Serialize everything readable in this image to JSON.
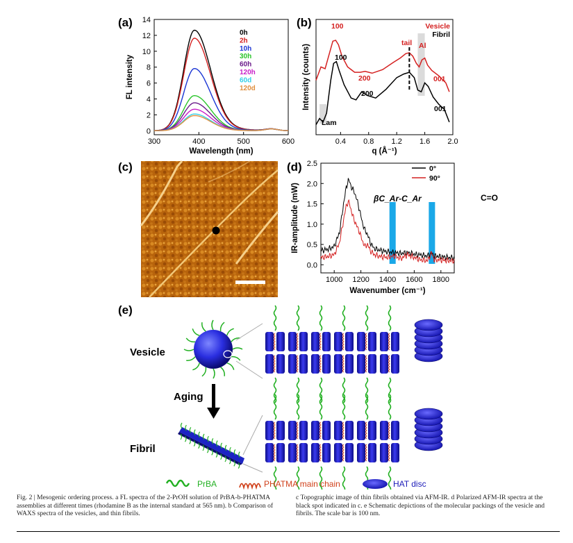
{
  "panels": {
    "a": {
      "label": "(a)"
    },
    "b": {
      "label": "(b)"
    },
    "c": {
      "label": "(c)"
    },
    "d": {
      "label": "(d)"
    },
    "e": {
      "label": "(e)"
    }
  },
  "chart_data": [
    {
      "id": "a",
      "type": "line",
      "title": "",
      "xlabel": "Wavelength (nm)",
      "ylabel": "FL intensity",
      "xlim": [
        300,
        600
      ],
      "ylim": [
        -0.5,
        14
      ],
      "xticks": [
        "300",
        "400",
        "500",
        "600"
      ],
      "yticks": [
        "0",
        "2",
        "4",
        "6",
        "8",
        "10",
        "12",
        "14"
      ],
      "legend_position": "top-right",
      "peak_x": 390,
      "series": [
        {
          "name": "0h",
          "color": "#000000",
          "peak": 12.6
        },
        {
          "name": "2h",
          "color": "#d42020",
          "peak": 11.6
        },
        {
          "name": "10h",
          "color": "#1a35d4",
          "peak": 7.8
        },
        {
          "name": "30h",
          "color": "#2ac42a",
          "peak": 4.4
        },
        {
          "name": "60h",
          "color": "#6a1a8a",
          "peak": 3.5
        },
        {
          "name": "120h",
          "color": "#c81ec8",
          "peak": 2.7
        },
        {
          "name": "60d",
          "color": "#34d0e8",
          "peak": 2.1
        },
        {
          "name": "120d",
          "color": "#e09040",
          "peak": 1.9
        }
      ]
    },
    {
      "id": "b",
      "type": "line",
      "title": "",
      "xlabel": "q (Å⁻¹)",
      "ylabel": "Intensity (counts)",
      "xlim": [
        0.05,
        2.0
      ],
      "xticks": [
        "0.4",
        "0.8",
        "1.2",
        "1.6",
        "2.0"
      ],
      "legend_position": "top-right",
      "series": [
        {
          "name": "Vesicle",
          "color": "#d42020",
          "x": [
            0.05,
            0.12,
            0.18,
            0.24,
            0.29,
            0.33,
            0.37,
            0.42,
            0.5,
            0.6,
            0.68,
            0.75,
            0.85,
            1.0,
            1.15,
            1.25,
            1.33,
            1.38,
            1.43,
            1.48,
            1.52,
            1.56,
            1.6,
            1.64,
            1.7,
            1.8,
            1.9,
            1.95
          ],
          "y": [
            0.55,
            0.7,
            0.68,
            0.85,
            0.99,
            1.0,
            0.95,
            0.82,
            0.7,
            0.64,
            0.64,
            0.65,
            0.63,
            0.67,
            0.75,
            0.8,
            0.85,
            0.86,
            0.82,
            0.74,
            0.7,
            0.78,
            0.8,
            0.72,
            0.66,
            0.6,
            0.52,
            0.42
          ]
        },
        {
          "name": "Fibril",
          "color": "#000000",
          "x": [
            0.05,
            0.1,
            0.15,
            0.2,
            0.26,
            0.3,
            0.34,
            0.38,
            0.45,
            0.55,
            0.62,
            0.7,
            0.78,
            0.9,
            1.05,
            1.2,
            1.3,
            1.38,
            1.45,
            1.5,
            1.55,
            1.6,
            1.65,
            1.72,
            1.8,
            1.88,
            1.95
          ],
          "y": [
            0.05,
            0.12,
            0.08,
            0.18,
            0.55,
            0.74,
            0.76,
            0.66,
            0.5,
            0.35,
            0.33,
            0.42,
            0.38,
            0.35,
            0.45,
            0.58,
            0.62,
            0.64,
            0.58,
            0.44,
            0.42,
            0.52,
            0.48,
            0.36,
            0.28,
            0.22,
            0.08
          ]
        }
      ],
      "annotations": {
        "vesicle": [
          "100",
          "200",
          "tail",
          "Al",
          "001"
        ],
        "fibril": [
          "100",
          "200",
          "001",
          "Lam"
        ]
      }
    },
    {
      "id": "d",
      "type": "line",
      "title": "",
      "xlabel": "Wavenumber (cm⁻¹)",
      "ylabel": "IR-amplitude (mW)",
      "xlim": [
        900,
        1900
      ],
      "ylim": [
        -0.2,
        2.5
      ],
      "xticks": [
        "1000",
        "1200",
        "1400",
        "1600",
        "1800"
      ],
      "yticks": [
        "0.0",
        "0.5",
        "1.0",
        "1.5",
        "2.0",
        "2.5"
      ],
      "legend_position": "top-right",
      "highlight_bands": [
        {
          "label": "βC_Ar-C_Ar",
          "x": 1435
        },
        {
          "label": "C=O",
          "x": 1730
        }
      ],
      "series": [
        {
          "name": "0°",
          "color": "#000000",
          "x": [
            900,
            950,
            1000,
            1040,
            1070,
            1090,
            1105,
            1115,
            1130,
            1150,
            1170,
            1190,
            1210,
            1230,
            1250,
            1270,
            1300,
            1350,
            1400,
            1450,
            1500,
            1550,
            1600,
            1650,
            1700,
            1730,
            1750,
            1800,
            1850,
            1900
          ],
          "y": [
            0.35,
            0.38,
            0.45,
            0.8,
            1.5,
            1.9,
            2.08,
            2.05,
            1.9,
            1.8,
            1.6,
            1.35,
            1.05,
            0.85,
            0.75,
            0.55,
            0.4,
            0.35,
            0.32,
            0.3,
            0.28,
            0.3,
            0.26,
            0.24,
            0.22,
            0.28,
            0.22,
            0.2,
            0.18,
            0.17
          ]
        },
        {
          "name": "90°",
          "color": "#d42020",
          "x": [
            900,
            950,
            1000,
            1040,
            1070,
            1090,
            1105,
            1115,
            1130,
            1150,
            1170,
            1190,
            1210,
            1230,
            1250,
            1270,
            1300,
            1350,
            1400,
            1450,
            1500,
            1550,
            1600,
            1650,
            1700,
            1730,
            1750,
            1800,
            1850,
            1900
          ],
          "y": [
            0.18,
            0.2,
            0.25,
            0.55,
            1.1,
            1.45,
            1.55,
            1.5,
            1.3,
            1.1,
            0.95,
            0.8,
            0.6,
            0.45,
            0.5,
            0.35,
            0.25,
            0.2,
            0.18,
            0.22,
            0.15,
            0.25,
            0.18,
            0.12,
            0.1,
            0.3,
            0.12,
            0.12,
            0.1,
            0.1
          ]
        }
      ]
    }
  ],
  "afm": {
    "scale_bar_nm": 100
  },
  "schematic": {
    "vesicle_label": "Vesicle",
    "aging_label": "Aging",
    "fibril_label": "Fibril",
    "legend": [
      {
        "label": "PrBA",
        "color": "#22b022"
      },
      {
        "label": "PHATMA main chain",
        "color": "#d0401a"
      },
      {
        "label": "HAT disc",
        "color": "#1a1ab8"
      }
    ]
  },
  "caption": {
    "left": "Fig. 2 | Mesogenic ordering process. a FL spectra of the 2-PrOH solution of PrBA-b-PHATMA assemblies at different times (rhodamine B as the internal standard at 565 nm). b Comparison of WAXS spectra of the vesicles, and thin fibrils.",
    "right": "c Topographic image of thin fibrils obtained via AFM-IR. d Polarized AFM-IR spectra at the black spot indicated in c. e Schematic depictions of the molecular packings of the vesicle and fibrils. The scale bar is 100 nm."
  }
}
